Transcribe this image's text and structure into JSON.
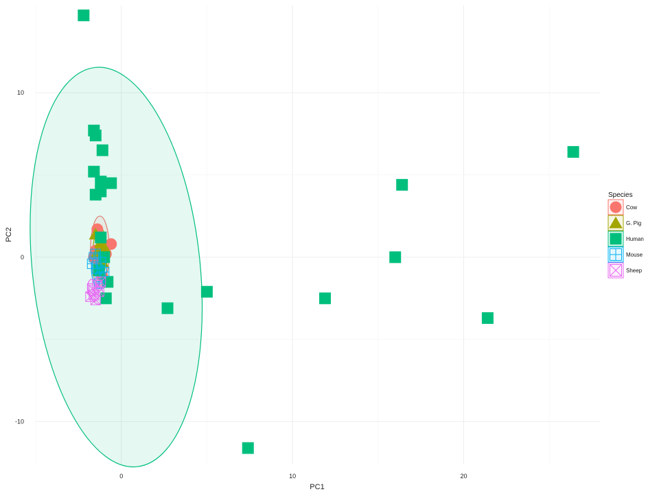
{
  "chart_data": {
    "type": "scatter",
    "title": "",
    "xlabel": "PC1",
    "ylabel": "PC2",
    "xlim": [
      -5,
      28
    ],
    "ylim": [
      -12.6,
      15.3
    ],
    "x_ticks": [
      0,
      10,
      20
    ],
    "y_ticks": [
      -10,
      0,
      10
    ],
    "x_tick_labels": [
      "0",
      "10",
      "20"
    ],
    "y_tick_labels": [
      "-10",
      "0",
      "10"
    ],
    "grid": true,
    "legend": {
      "title": "Species",
      "placement": "right",
      "entries": [
        "Cow",
        "G. Pig",
        "Human",
        "Mouse",
        "Sheep"
      ]
    },
    "colors": {
      "Cow": "#F8766D",
      "G. Pig": "#A3A500",
      "Human": "#00BF7D",
      "Mouse": "#00B0F6",
      "Sheep": "#E76BF3"
    },
    "series": [
      {
        "name": "Cow",
        "marker": "circle",
        "points": [
          [
            -1.4,
            1.7
          ],
          [
            -0.6,
            0.8
          ],
          [
            -1.2,
            1.2
          ],
          [
            -1.5,
            0.4
          ],
          [
            -1.3,
            -0.5
          ],
          [
            -1.1,
            -1.2
          ],
          [
            -1.6,
            0.0
          ],
          [
            -0.9,
            0.2
          ]
        ],
        "ellipse": {
          "cx": -1.25,
          "cy": 0.4,
          "rx": 0.55,
          "ry": 2.1,
          "angle": 0
        }
      },
      {
        "name": "G. Pig",
        "marker": "triangle",
        "points": [
          [
            -1.5,
            1.4
          ],
          [
            -1.2,
            0.9
          ],
          [
            -1.4,
            0.3
          ],
          [
            -1.1,
            -0.3
          ],
          [
            -1.3,
            -0.8
          ],
          [
            -1.0,
            0.6
          ]
        ],
        "ellipse": {
          "cx": -1.25,
          "cy": 0.3,
          "rx": 0.4,
          "ry": 1.5,
          "angle": 0
        }
      },
      {
        "name": "Human",
        "marker": "square",
        "points": [
          [
            -2.2,
            14.7
          ],
          [
            -1.6,
            7.7
          ],
          [
            -1.5,
            7.4
          ],
          [
            -1.1,
            6.5
          ],
          [
            -1.6,
            5.2
          ],
          [
            -1.2,
            4.6
          ],
          [
            -0.6,
            4.5
          ],
          [
            -1.2,
            4.0
          ],
          [
            -1.5,
            3.8
          ],
          [
            -1.2,
            1.2
          ],
          [
            -1.0,
            0.0
          ],
          [
            -1.3,
            -0.8
          ],
          [
            -0.8,
            -1.5
          ],
          [
            -0.9,
            -2.5
          ],
          [
            2.7,
            -3.1
          ],
          [
            5.0,
            -2.1
          ],
          [
            7.4,
            -11.6
          ],
          [
            11.9,
            -2.5
          ],
          [
            16.0,
            0.0
          ],
          [
            16.4,
            4.4
          ],
          [
            21.4,
            -3.7
          ],
          [
            26.4,
            6.4
          ]
        ],
        "ellipse": {
          "cx": -0.3,
          "cy": -0.6,
          "rx": 4.9,
          "ry": 12.2,
          "angle": -6
        }
      },
      {
        "name": "Mouse",
        "marker": "square-plus",
        "points": [
          [
            -1.5,
            0.2
          ],
          [
            -1.2,
            -0.3
          ],
          [
            -1.4,
            -0.7
          ],
          [
            -1.6,
            0.0
          ],
          [
            -1.2,
            -1.2
          ],
          [
            -1.0,
            -0.9
          ],
          [
            -1.3,
            -1.6
          ],
          [
            -1.7,
            -0.4
          ]
        ],
        "ellipse": {
          "cx": -1.3,
          "cy": -0.6,
          "rx": 0.45,
          "ry": 1.3,
          "angle": 0
        }
      },
      {
        "name": "Sheep",
        "marker": "square-x",
        "points": [
          [
            -1.6,
            -2.0
          ],
          [
            -1.4,
            -1.7
          ],
          [
            -1.6,
            -2.3
          ],
          [
            -1.2,
            -1.5
          ],
          [
            -1.5,
            -2.6
          ],
          [
            -1.8,
            -2.4
          ],
          [
            -1.3,
            -2.1
          ],
          [
            -1.7,
            -1.9
          ]
        ],
        "ellipse": {
          "cx": -1.5,
          "cy": -2.1,
          "rx": 0.4,
          "ry": 0.8,
          "angle": -20
        }
      }
    ]
  }
}
